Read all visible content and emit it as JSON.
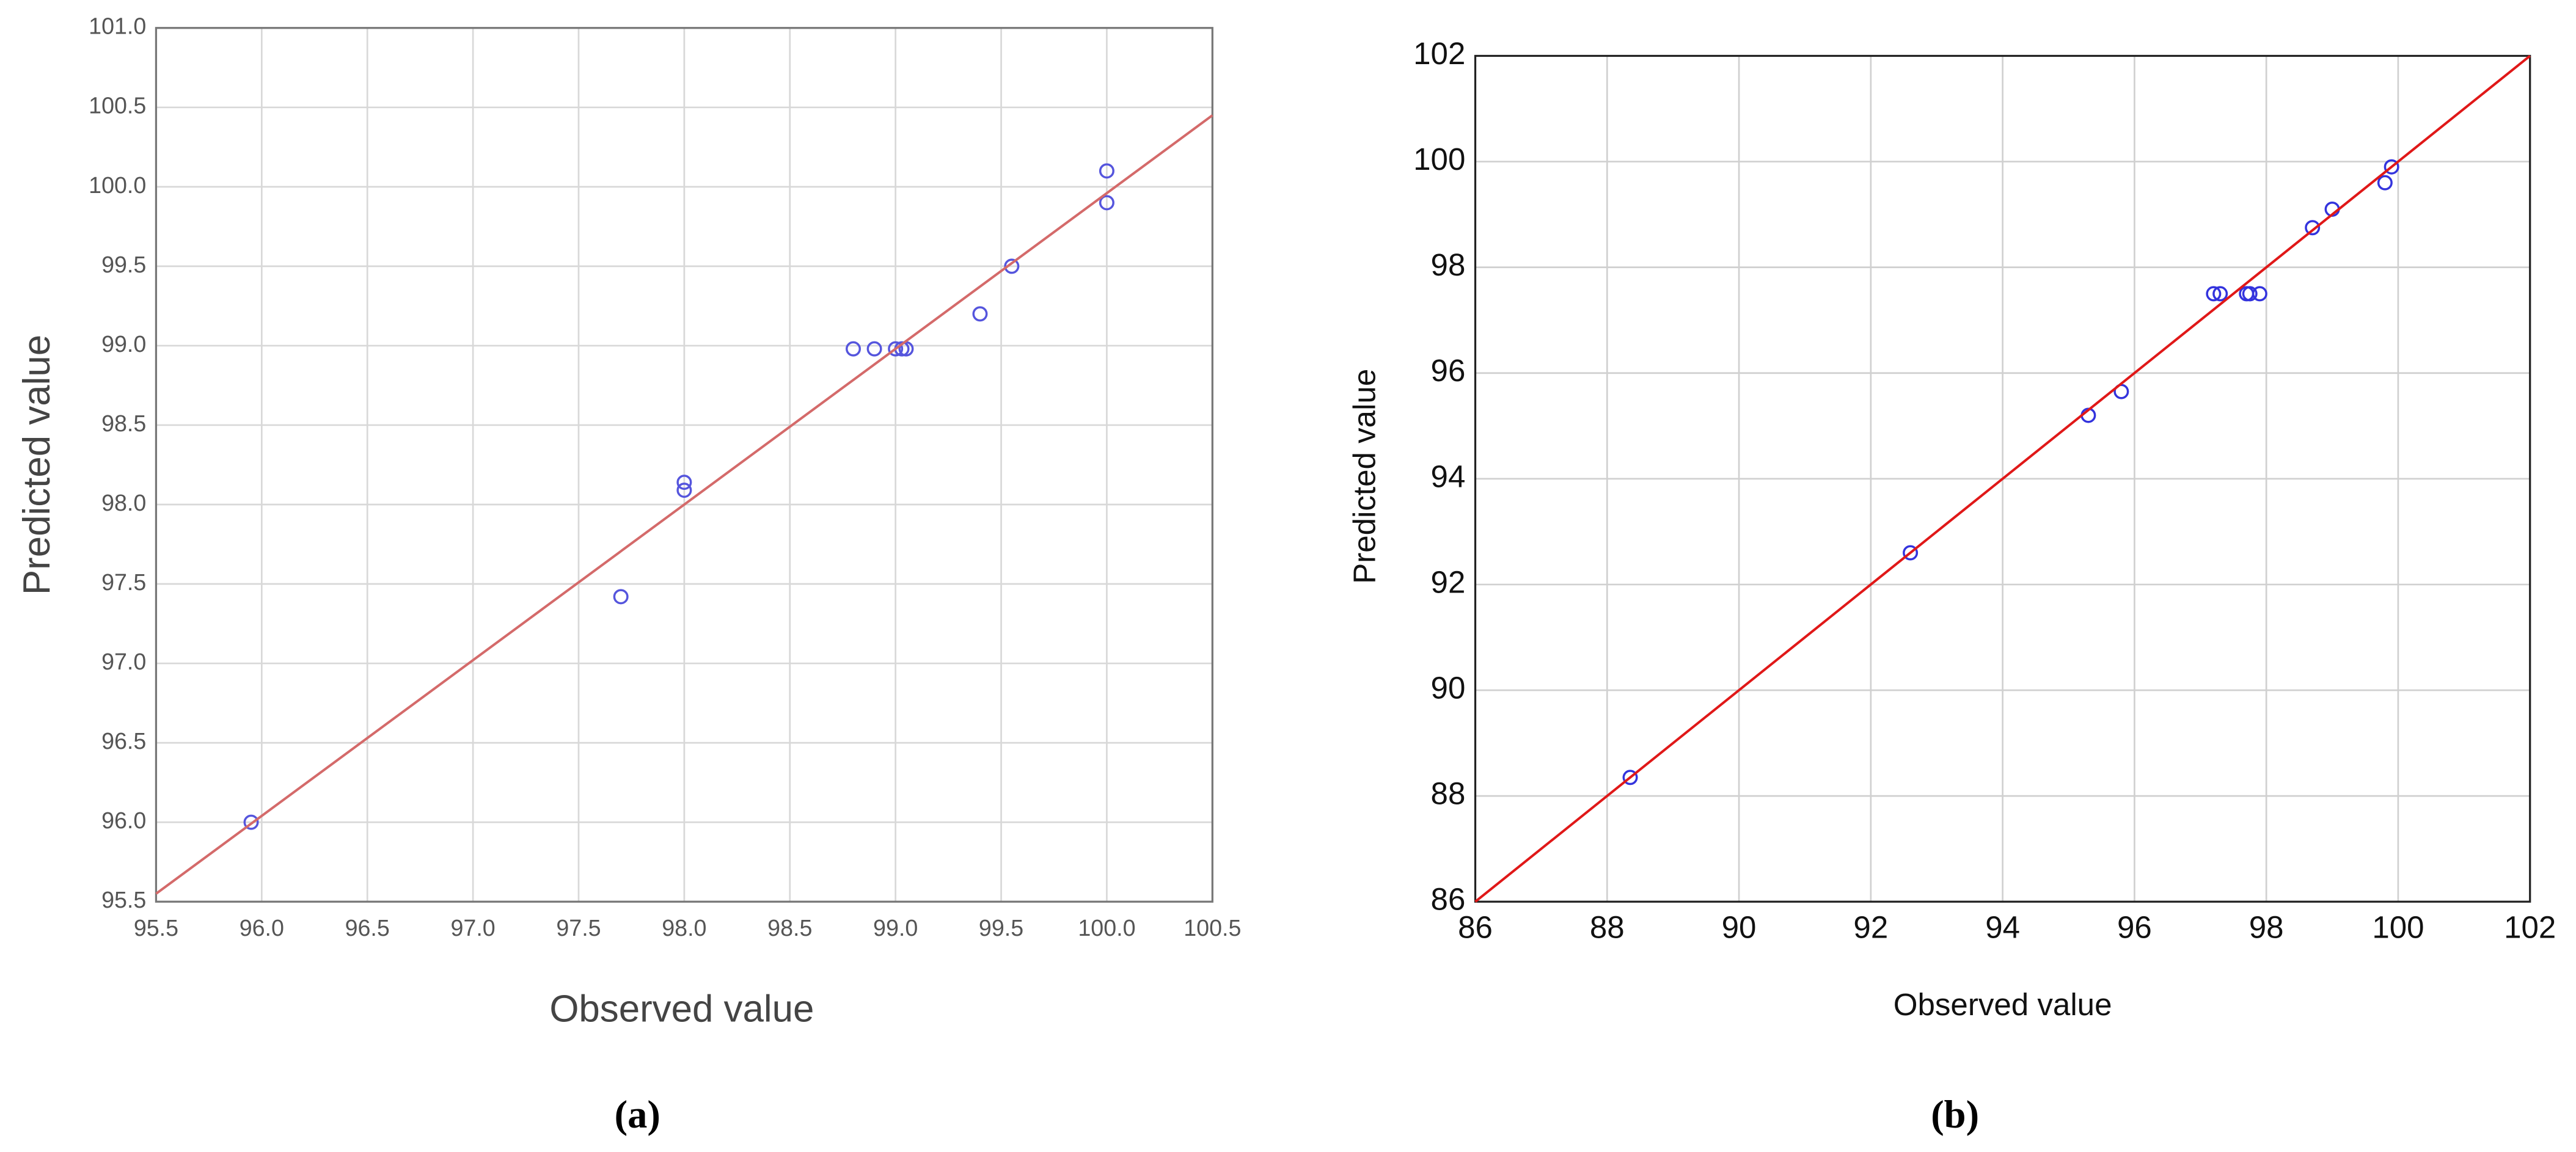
{
  "chart_data": [
    {
      "type": "scatter",
      "xlabel": "Observed value",
      "ylabel": "Predicted value",
      "caption": "(a)",
      "xlim": [
        95.5,
        100.5
      ],
      "ylim": [
        95.5,
        101.0
      ],
      "grid": true,
      "xticks": [
        95.5,
        {
          "value": 96,
          "label": "96.0"
        },
        96.5,
        {
          "value": 97,
          "label": "97.0"
        },
        97.5,
        {
          "value": 98,
          "label": "98.0"
        },
        98.5,
        {
          "value": 99,
          "label": "99.0"
        },
        99.5,
        {
          "value": 100,
          "label": "100.0"
        },
        100.5
      ],
      "yticks": [
        95.5,
        {
          "value": 96,
          "label": "96.0"
        },
        96.5,
        {
          "value": 97,
          "label": "97.0"
        },
        97.5,
        {
          "value": 98,
          "label": "98.0"
        },
        98.5,
        {
          "value": 99,
          "label": "99.0"
        },
        99.5,
        {
          "value": 100,
          "label": "100.0"
        },
        100.5,
        {
          "value": 101,
          "label": "101.0"
        }
      ],
      "series": [
        {
          "type": "scatter",
          "color": "#5555dd",
          "x": [
            95.95,
            97.7,
            98.0,
            98.0,
            98.8,
            98.9,
            99.0,
            99.03,
            99.05,
            99.4,
            99.55,
            100.0,
            100.0
          ],
          "values": [
            96.0,
            97.42,
            98.14,
            98.09,
            98.98,
            98.98,
            98.98,
            98.98,
            98.98,
            99.2,
            99.5,
            100.1,
            99.9
          ]
        },
        {
          "type": "line",
          "color": "#d46a6a",
          "x": [
            95.5,
            100.5
          ],
          "values": [
            95.55,
            100.45
          ]
        }
      ]
    },
    {
      "type": "scatter",
      "xlabel": "Observed value",
      "ylabel": "Predicted value",
      "caption": "(b)",
      "xlim": [
        86,
        102
      ],
      "ylim": [
        86,
        102
      ],
      "grid": true,
      "xticks": [
        86,
        88,
        90,
        92,
        94,
        96,
        98,
        100,
        102
      ],
      "yticks": [
        86,
        88,
        90,
        92,
        94,
        96,
        98,
        100,
        102
      ],
      "series": [
        {
          "type": "scatter",
          "color": "#3333dd",
          "x": [
            88.35,
            92.6,
            95.3,
            95.8,
            97.2,
            97.3,
            97.7,
            97.75,
            97.9,
            98.7,
            99.0,
            99.8,
            99.9
          ],
          "values": [
            88.35,
            92.6,
            95.2,
            95.65,
            97.5,
            97.5,
            97.5,
            97.5,
            97.5,
            98.75,
            99.1,
            99.6,
            99.9
          ]
        },
        {
          "type": "line",
          "color": "#e01818",
          "x": [
            86,
            102
          ],
          "values": [
            86,
            102
          ]
        }
      ]
    }
  ]
}
